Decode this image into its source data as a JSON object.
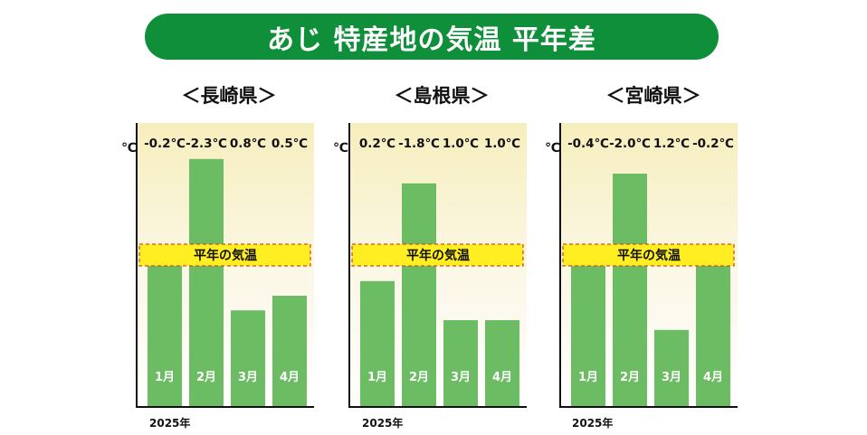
{
  "title": "あじ 特産地の気温 平年差",
  "unit": "℃",
  "year": "2025年",
  "normal_label": "平年の気温",
  "colors": {
    "title_bg": "#0f8f3a",
    "bar": "#6cbc64",
    "band": "#ffef22",
    "band_border": "#d94a1f",
    "bg_top": "#f7eebd"
  },
  "chart_data": [
    {
      "type": "bar",
      "title": "＜長崎県＞",
      "categories": [
        "1月",
        "2月",
        "3月",
        "4月"
      ],
      "values": [
        -0.2,
        -2.3,
        0.8,
        0.5
      ],
      "labels": [
        "-0.2℃",
        "-2.3℃",
        "0.8℃",
        "0.5℃"
      ]
    },
    {
      "type": "bar",
      "title": "＜島根県＞",
      "categories": [
        "1月",
        "2月",
        "3月",
        "4月"
      ],
      "values": [
        0.2,
        -1.8,
        1.0,
        1.0
      ],
      "labels": [
        "0.2℃",
        "-1.8℃",
        "1.0℃",
        "1.0℃"
      ]
    },
    {
      "type": "bar",
      "title": "＜宮崎県＞",
      "categories": [
        "1月",
        "2月",
        "3月",
        "4月"
      ],
      "values": [
        -0.4,
        -2.0,
        1.2,
        -0.2
      ],
      "labels": [
        "-0.4℃",
        "-2.0℃",
        "1.2℃",
        "-0.2℃"
      ]
    }
  ]
}
